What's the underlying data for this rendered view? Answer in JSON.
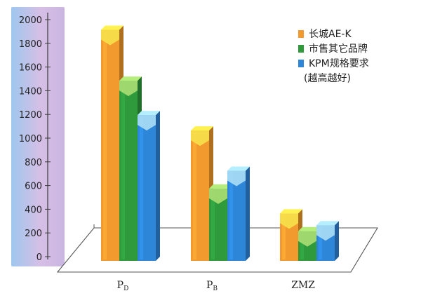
{
  "chart_data": {
    "type": "bar",
    "categories": [
      "P_D",
      "P_B",
      "ZMZ"
    ],
    "category_labels": [
      {
        "main": "P",
        "sub": "D"
      },
      {
        "main": "P",
        "sub": "B"
      },
      {
        "main": "ZMZ",
        "sub": ""
      }
    ],
    "series": [
      {
        "name": "长城AE-K",
        "values": [
          1950,
          1100,
          400
        ],
        "color": "#f39a2e",
        "top_color": "#f7e04a"
      },
      {
        "name": "市售其它品牌",
        "values": [
          1520,
          610,
          250
        ],
        "color": "#2e9a3c",
        "top_color": "#a8dc72"
      },
      {
        "name": "KPM规格要求",
        "values": [
          1230,
          760,
          300
        ],
        "color": "#2e86d8",
        "top_color": "#a8dcf5"
      }
    ],
    "legend_note": "(越高越好)",
    "y_ticks": [
      0,
      200,
      400,
      600,
      800,
      1000,
      1200,
      1400,
      1600,
      1800,
      2000
    ],
    "ylim": [
      0,
      2000
    ],
    "legend_position": "top-right",
    "grid": false,
    "title": "",
    "xlabel": "",
    "ylabel": ""
  }
}
